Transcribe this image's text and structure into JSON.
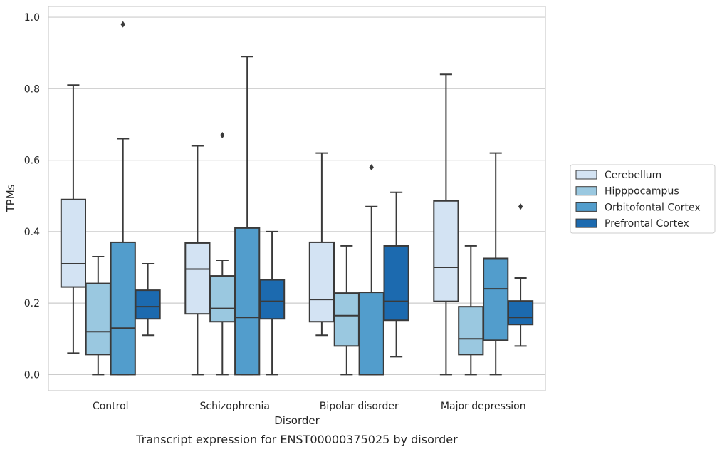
{
  "chart_data": {
    "type": "boxplot",
    "title": "",
    "caption": "Transcript expression for ENST00000375025 by disorder",
    "xlabel": "Disorder",
    "ylabel": "TPMs",
    "ylim": [
      -0.045,
      1.03
    ],
    "yticks": [
      0.0,
      0.2,
      0.4,
      0.6,
      0.8,
      1.0
    ],
    "ytick_labels": [
      "0.0",
      "0.2",
      "0.4",
      "0.6",
      "0.8",
      "1.0"
    ],
    "grid": "horizontal",
    "legend_position": "right",
    "categories": [
      "Control",
      "Schizophrenia",
      "Bipolar disorder",
      "Major depression"
    ],
    "series": [
      {
        "name": "Cerebellum",
        "color": "#d3e3f3",
        "boxes": [
          {
            "whislo": 0.06,
            "q1": 0.245,
            "med": 0.31,
            "q3": 0.49,
            "whishi": 0.81,
            "fliers": []
          },
          {
            "whislo": 0.0,
            "q1": 0.17,
            "med": 0.295,
            "q3": 0.368,
            "whishi": 0.64,
            "fliers": []
          },
          {
            "whislo": 0.11,
            "q1": 0.148,
            "med": 0.21,
            "q3": 0.37,
            "whishi": 0.62,
            "fliers": []
          },
          {
            "whislo": 0.0,
            "q1": 0.205,
            "med": 0.3,
            "q3": 0.486,
            "whishi": 0.84,
            "fliers": []
          }
        ]
      },
      {
        "name": "Hipppocampus",
        "color": "#9ac8e0",
        "boxes": [
          {
            "whislo": 0.0,
            "q1": 0.056,
            "med": 0.12,
            "q3": 0.255,
            "whishi": 0.33,
            "fliers": []
          },
          {
            "whislo": 0.0,
            "q1": 0.148,
            "med": 0.185,
            "q3": 0.276,
            "whishi": 0.32,
            "fliers": [
              0.67
            ]
          },
          {
            "whislo": 0.0,
            "q1": 0.08,
            "med": 0.165,
            "q3": 0.228,
            "whishi": 0.36,
            "fliers": []
          },
          {
            "whislo": 0.0,
            "q1": 0.056,
            "med": 0.1,
            "q3": 0.19,
            "whishi": 0.36,
            "fliers": []
          }
        ]
      },
      {
        "name": "Orbitofontal Cortex",
        "color": "#529dcc",
        "boxes": [
          {
            "whislo": 0.0,
            "q1": 0.0,
            "med": 0.13,
            "q3": 0.37,
            "whishi": 0.66,
            "fliers": [
              0.98
            ]
          },
          {
            "whislo": 0.0,
            "q1": 0.0,
            "med": 0.16,
            "q3": 0.41,
            "whishi": 0.89,
            "fliers": []
          },
          {
            "whislo": 0.0,
            "q1": 0.0,
            "med": 0.0,
            "q3": 0.23,
            "whishi": 0.47,
            "fliers": [
              0.58
            ]
          },
          {
            "whislo": 0.0,
            "q1": 0.096,
            "med": 0.24,
            "q3": 0.325,
            "whishi": 0.62,
            "fliers": []
          }
        ]
      },
      {
        "name": "Prefrontal Cortex",
        "color": "#1c6aaf",
        "boxes": [
          {
            "whislo": 0.11,
            "q1": 0.156,
            "med": 0.19,
            "q3": 0.236,
            "whishi": 0.31,
            "fliers": []
          },
          {
            "whislo": 0.0,
            "q1": 0.156,
            "med": 0.205,
            "q3": 0.265,
            "whishi": 0.4,
            "fliers": []
          },
          {
            "whislo": 0.05,
            "q1": 0.152,
            "med": 0.205,
            "q3": 0.36,
            "whishi": 0.51,
            "fliers": []
          },
          {
            "whislo": 0.08,
            "q1": 0.14,
            "med": 0.16,
            "q3": 0.206,
            "whishi": 0.27,
            "fliers": [
              0.47
            ]
          }
        ]
      }
    ]
  }
}
